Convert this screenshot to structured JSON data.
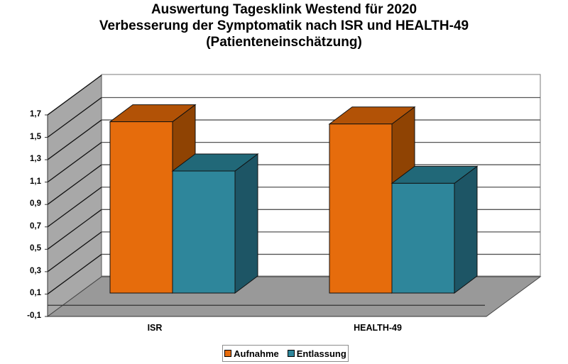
{
  "title": {
    "line1": "Auswertung Tagesklink Westend für 2020",
    "line2": "Verbesserung der Symptomatik nach ISR und HEALTH-49",
    "line3": "(Patienteneinschätzung)"
  },
  "y_axis": {
    "ticks": [
      "1,7",
      "1,5",
      "1,3",
      "1,1",
      "0,9",
      "0,7",
      "0,5",
      "0,3",
      "0,1",
      "-0,1"
    ]
  },
  "categories": [
    "ISR",
    "HEALTH-49"
  ],
  "legend": {
    "items": [
      {
        "label": "Aufnahme",
        "color": "#e66c0c"
      },
      {
        "label": "Entlassung",
        "color": "#2e869b"
      }
    ]
  },
  "colors": {
    "aufnahme_front": "#e66c0c",
    "aufnahme_top": "#b25206",
    "aufnahme_side": "#8f4303",
    "entlassung_front": "#2e869b",
    "entlassung_top": "#216878",
    "entlassung_side": "#1d5565",
    "wall": "#a8a8a8",
    "floor": "#999999"
  },
  "chart_data": {
    "type": "bar",
    "title": "Auswertung Tagesklink Westend für 2020 — Verbesserung der Symptomatik nach ISR und HEALTH-49 (Patienteneinschätzung)",
    "categories": [
      "ISR",
      "HEALTH-49"
    ],
    "series": [
      {
        "name": "Aufnahme",
        "values": [
          1.53,
          1.51
        ]
      },
      {
        "name": "Entlassung",
        "values": [
          1.09,
          0.98
        ]
      }
    ],
    "xlabel": "",
    "ylabel": "",
    "ylim": [
      -0.1,
      1.7
    ],
    "yticks": [
      -0.1,
      0.1,
      0.3,
      0.5,
      0.7,
      0.9,
      1.1,
      1.3,
      1.5,
      1.7
    ],
    "grid": true,
    "legend_position": "bottom",
    "style": "3d-clustered-column"
  }
}
